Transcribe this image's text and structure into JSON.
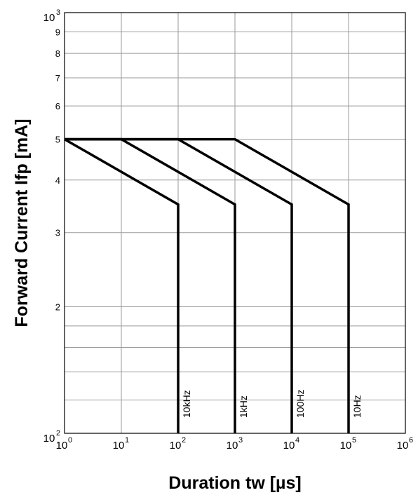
{
  "chart_data": {
    "type": "line",
    "xlabel": "Duration tw [µs]",
    "ylabel": "Forward Current Ifp [mA]",
    "x_scale": "log",
    "y_scale": "log",
    "xlim": [
      1,
      1000000
    ],
    "ylim": [
      100,
      1000
    ],
    "grid": true,
    "x_ticks": [
      {
        "base": "10",
        "exp": "0",
        "value": 1
      },
      {
        "base": "10",
        "exp": "1",
        "value": 10
      },
      {
        "base": "10",
        "exp": "2",
        "value": 100
      },
      {
        "base": "10",
        "exp": "3",
        "value": 1000
      },
      {
        "base": "10",
        "exp": "4",
        "value": 10000
      },
      {
        "base": "10",
        "exp": "5",
        "value": 100000
      },
      {
        "base": "10",
        "exp": "6",
        "value": 1000000
      }
    ],
    "y_major_ticks": [
      {
        "base": "10",
        "exp": "2",
        "value": 100
      },
      {
        "base": "10",
        "exp": "3",
        "value": 1000
      }
    ],
    "y_minor_ticks": [
      {
        "label": "",
        "value": 120
      },
      {
        "label": "",
        "value": 140
      },
      {
        "label": "",
        "value": 160
      },
      {
        "label": "",
        "value": 180
      },
      {
        "label": "2",
        "value": 200
      },
      {
        "label": "3",
        "value": 300
      },
      {
        "label": "4",
        "value": 400
      },
      {
        "label": "5",
        "value": 500
      },
      {
        "label": "6",
        "value": 600
      },
      {
        "label": "7",
        "value": 700
      },
      {
        "label": "8",
        "value": 800
      },
      {
        "label": "9",
        "value": 900
      }
    ],
    "series": [
      {
        "name": "10kHz",
        "x": [
          1,
          100,
          100
        ],
        "y": [
          500,
          350,
          100
        ]
      },
      {
        "name": "1kHz",
        "x": [
          1,
          10,
          1000,
          1000
        ],
        "y": [
          500,
          500,
          350,
          100
        ]
      },
      {
        "name": "100Hz",
        "x": [
          1,
          100,
          10000,
          10000
        ],
        "y": [
          500,
          500,
          350,
          100
        ]
      },
      {
        "name": "10Hz",
        "x": [
          1,
          1000,
          100000,
          100000
        ],
        "y": [
          500,
          500,
          350,
          100
        ]
      }
    ]
  }
}
